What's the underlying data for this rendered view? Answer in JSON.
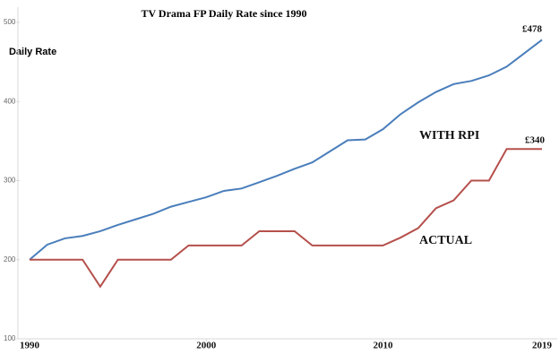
{
  "chart_data": {
    "type": "line",
    "title": "TV Drama FP Daily Rate since 1990",
    "y_label": "Daily Rate",
    "x": [
      1990,
      1991,
      1992,
      1993,
      1994,
      1995,
      1996,
      1997,
      1998,
      1999,
      2000,
      2001,
      2002,
      2003,
      2004,
      2005,
      2006,
      2007,
      2008,
      2009,
      2010,
      2011,
      2012,
      2013,
      2014,
      2015,
      2016,
      2017,
      2018,
      2019
    ],
    "series": [
      {
        "name": "WITH RPI",
        "color": "#4a7ebb",
        "values": [
          200,
          219,
          227,
          230,
          236,
          244,
          251,
          258,
          267,
          273,
          279,
          287,
          290,
          298,
          306,
          315,
          323,
          337,
          351,
          352,
          365,
          384,
          399,
          412,
          422,
          426,
          433,
          444,
          461,
          478
        ]
      },
      {
        "name": "ACTUAL",
        "color": "#b5504c",
        "values": [
          200,
          200,
          200,
          200,
          166,
          200,
          200,
          200,
          200,
          218,
          218,
          218,
          218,
          236,
          236,
          236,
          218,
          218,
          218,
          218,
          218,
          228,
          240,
          265,
          275,
          300,
          300,
          340,
          340,
          340
        ]
      }
    ],
    "annotations": [
      "£478",
      "£340"
    ],
    "xlim": [
      1990,
      2019
    ],
    "xticks": [
      1990,
      2000,
      2010,
      2019
    ],
    "ylim": [
      100,
      500
    ],
    "yticks": [
      100,
      200,
      300,
      400,
      500
    ],
    "grid": false
  }
}
